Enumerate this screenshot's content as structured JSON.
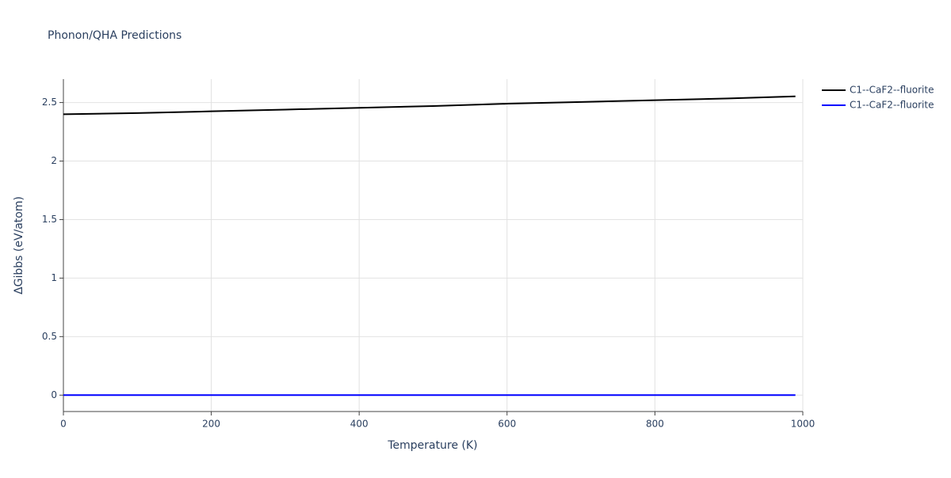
{
  "chart_data": {
    "type": "line",
    "title": "Phonon/QHA Predictions",
    "x_label": "Temperature (K)",
    "y_label": "ΔGibbs (eV/atom)",
    "x": [
      0,
      100,
      200,
      300,
      400,
      500,
      600,
      700,
      800,
      900,
      990
    ],
    "series": [
      {
        "name": "C1--CaF2--fluorite",
        "color": "#000000",
        "values": [
          2.4,
          2.41,
          2.425,
          2.44,
          2.455,
          2.47,
          2.49,
          2.505,
          2.52,
          2.535,
          2.553
        ]
      },
      {
        "name": "C1--CaF2--fluorite",
        "color": "#0000ff",
        "values": [
          0,
          0,
          0,
          0,
          0,
          0,
          0,
          0,
          0,
          0,
          0
        ]
      }
    ],
    "xlim": [
      0,
      1000
    ],
    "xticks": [
      0,
      200,
      400,
      600,
      800,
      1000
    ],
    "ylim": [
      -0.14,
      2.7
    ],
    "yticks": [
      0,
      0.5,
      1,
      1.5,
      2,
      2.5
    ],
    "grid": true,
    "legend": "outside-right"
  }
}
